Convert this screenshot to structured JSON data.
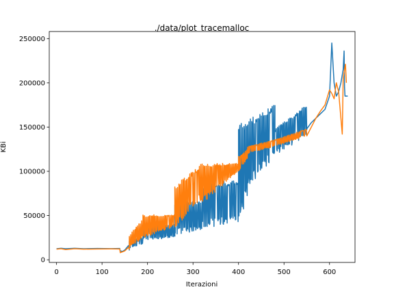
{
  "chart_data": {
    "type": "line",
    "title": "./data/plot_tracemalloc",
    "xlabel": "Iterazioni",
    "ylabel": "KBi",
    "xlim": [
      -16,
      656
    ],
    "ylim": [
      -3000,
      258000
    ],
    "xticks": [
      0,
      100,
      200,
      300,
      400,
      500,
      600
    ],
    "yticks": [
      0,
      50000,
      100000,
      150000,
      200000,
      250000
    ],
    "grid": false,
    "legend": "none",
    "series": [
      {
        "color": "#1f77b4",
        "stroke": 1.5,
        "segments": [
          {
            "type": "line",
            "points": [
              [
                0,
                12500
              ],
              [
                10,
                13000
              ],
              [
                20,
                12500
              ],
              [
                40,
                13000
              ],
              [
                60,
                12500
              ],
              [
                90,
                12800
              ],
              [
                120,
                12600
              ],
              [
                139,
                12800
              ],
              [
                140,
                10000
              ],
              [
                145,
                9500
              ],
              [
                150,
                11000
              ],
              [
                158,
                16000
              ],
              [
                160,
                11000
              ]
            ]
          },
          {
            "type": "osc",
            "x0": 160,
            "x1": 190,
            "step": 1,
            "lo": [
              12000,
              18000
            ],
            "hi": [
              22000,
              26000
            ]
          },
          {
            "type": "osc",
            "x0": 190,
            "x1": 260,
            "step": 1,
            "lo": [
              22000,
              25000
            ],
            "hi": [
              40000,
              40000
            ]
          },
          {
            "type": "osc",
            "x0": 260,
            "x1": 320,
            "step": 1,
            "lo": [
              28000,
              34000
            ],
            "hi": [
              66000,
              66000
            ]
          },
          {
            "type": "osc",
            "x0": 320,
            "x1": 400,
            "step": 1,
            "lo": [
              35000,
              42000
            ],
            "hi": [
              86000,
              91000
            ]
          },
          {
            "type": "osc",
            "x0": 400,
            "x1": 420,
            "step": 1,
            "lo": [
              42000,
              70000
            ],
            "hi": [
              155000,
              155000
            ]
          },
          {
            "type": "osc",
            "x0": 420,
            "x1": 480,
            "step": 1,
            "lo": [
              80000,
              115000
            ],
            "hi": [
              158000,
              176000
            ]
          },
          {
            "type": "osc",
            "x0": 480,
            "x1": 550,
            "step": 1,
            "lo": [
              117000,
              140000
            ],
            "hi": [
              148000,
              176000
            ]
          },
          {
            "type": "line",
            "points": [
              [
                550,
                148000
              ],
              [
                560,
                155000
              ],
              [
                570,
                160000
              ],
              [
                580,
                165000
              ],
              [
                590,
                170000
              ],
              [
                600,
                185000
              ],
              [
                605,
                245000
              ],
              [
                610,
                200000
              ],
              [
                615,
                185000
              ],
              [
                620,
                190000
              ],
              [
                625,
                200000
              ],
              [
                630,
                215000
              ],
              [
                632,
                236000
              ],
              [
                633,
                195000
              ],
              [
                634,
                185000
              ],
              [
                640,
                185000
              ]
            ]
          }
        ]
      },
      {
        "color": "#ff7f0e",
        "stroke": 1.5,
        "segments": [
          {
            "type": "line",
            "points": [
              [
                0,
                12000
              ],
              [
                10,
                12500
              ],
              [
                20,
                11500
              ],
              [
                40,
                12500
              ],
              [
                60,
                12000
              ],
              [
                90,
                12200
              ],
              [
                120,
                12300
              ],
              [
                139,
                12200
              ],
              [
                140,
                8000
              ],
              [
                145,
                9000
              ],
              [
                150,
                10000
              ],
              [
                158,
                14000
              ],
              [
                160,
                12000
              ]
            ]
          },
          {
            "type": "osc",
            "x0": 160,
            "x1": 190,
            "step": 1,
            "lo": [
              14000,
              24000
            ],
            "hi": [
              28000,
              46000
            ]
          },
          {
            "type": "osc",
            "x0": 190,
            "x1": 260,
            "step": 1,
            "lo": [
              24000,
              38000
            ],
            "hi": [
              51000,
              51000
            ]
          },
          {
            "type": "osc",
            "x0": 260,
            "x1": 320,
            "step": 1,
            "lo": [
              36000,
              68000
            ],
            "hi": [
              84000,
              109000
            ]
          },
          {
            "type": "osc",
            "x0": 320,
            "x1": 400,
            "step": 1,
            "lo": [
              62000,
              100000
            ],
            "hi": [
              109000,
              109000
            ]
          },
          {
            "type": "osc",
            "x0": 400,
            "x1": 420,
            "step": 1,
            "lo": [
              100000,
              115000
            ],
            "hi": [
              117000,
              125000
            ]
          },
          {
            "type": "osc",
            "x0": 420,
            "x1": 480,
            "step": 1,
            "lo": [
              120000,
              128000
            ],
            "hi": [
              128000,
              136000
            ]
          },
          {
            "type": "osc",
            "x0": 480,
            "x1": 550,
            "step": 1,
            "lo": [
              128000,
              140000
            ],
            "hi": [
              136000,
              148000
            ]
          },
          {
            "type": "line",
            "points": [
              [
                550,
                140000
              ],
              [
                560,
                150000
              ],
              [
                570,
                160000
              ],
              [
                580,
                168000
              ],
              [
                590,
                175000
              ],
              [
                600,
                192000
              ],
              [
                605,
                188000
              ],
              [
                610,
                182000
              ],
              [
                615,
                200000
              ],
              [
                620,
                190000
              ],
              [
                625,
                160000
              ],
              [
                628,
                142000
              ],
              [
                630,
                205000
              ],
              [
                633,
                215000
              ],
              [
                635,
                221000
              ],
              [
                637,
                200000
              ]
            ]
          }
        ]
      }
    ]
  }
}
